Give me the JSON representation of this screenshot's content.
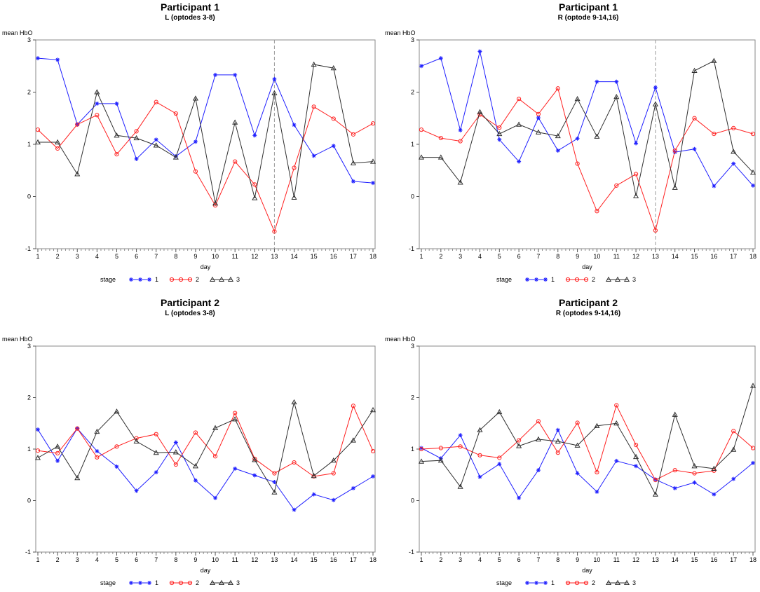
{
  "chart_data": [
    {
      "type": "line",
      "title": "Participant 1",
      "subtitle": "L (optodes 3-8)",
      "xlabel": "day",
      "ylabel": "mean HbO",
      "x": [
        1,
        2,
        3,
        4,
        5,
        6,
        7,
        8,
        9,
        10,
        11,
        12,
        13,
        14,
        15,
        16,
        17,
        18
      ],
      "xticks": [
        "1",
        "2",
        "3",
        "4",
        "5",
        "6",
        "7",
        "8",
        "9",
        "10",
        "11",
        "12",
        "13",
        "14",
        "15",
        "16",
        "17",
        "18"
      ],
      "ylim": [
        -1,
        3
      ],
      "yticks": [
        "-1",
        "0",
        "1",
        "2",
        "3"
      ],
      "vline": 13,
      "legend_title": "stage",
      "series": [
        {
          "name": "1",
          "color": "#1f1fff",
          "marker": "star",
          "values": [
            2.65,
            2.62,
            1.38,
            1.78,
            1.78,
            0.72,
            1.09,
            0.77,
            1.05,
            2.33,
            2.33,
            1.17,
            2.25,
            1.37,
            0.78,
            0.97,
            0.29,
            0.26
          ]
        },
        {
          "name": "2",
          "color": "#ff2020",
          "marker": "circle",
          "values": [
            1.28,
            0.92,
            1.38,
            1.56,
            0.81,
            1.25,
            1.81,
            1.59,
            0.48,
            -0.17,
            0.67,
            0.23,
            -0.67,
            0.55,
            1.72,
            1.49,
            1.19,
            1.4
          ]
        },
        {
          "name": "3",
          "color": "#303030",
          "marker": "triangle",
          "values": [
            1.04,
            1.04,
            0.43,
            2.0,
            1.17,
            1.12,
            0.98,
            0.75,
            1.88,
            -0.13,
            1.42,
            -0.03,
            1.98,
            -0.02,
            2.53,
            2.46,
            0.64,
            0.67
          ]
        }
      ]
    },
    {
      "type": "line",
      "title": "Participant 1",
      "subtitle": "R (optode 9-14,16)",
      "xlabel": "day",
      "ylabel": "mean HbO",
      "x": [
        1,
        2,
        3,
        4,
        5,
        6,
        7,
        8,
        9,
        10,
        11,
        12,
        13,
        14,
        15,
        16,
        17,
        18
      ],
      "xticks": [
        "1",
        "2",
        "3",
        "4",
        "5",
        "6",
        "7",
        "8",
        "9",
        "10",
        "11",
        "12",
        "13",
        "14",
        "15",
        "16",
        "17",
        "18"
      ],
      "ylim": [
        -1,
        3
      ],
      "yticks": [
        "-1",
        "0",
        "1",
        "2",
        "3"
      ],
      "vline": 13,
      "legend_title": "stage",
      "series": [
        {
          "name": "1",
          "color": "#1f1fff",
          "marker": "star",
          "values": [
            2.5,
            2.65,
            1.27,
            2.78,
            1.09,
            0.67,
            1.51,
            0.88,
            1.11,
            2.2,
            2.2,
            1.02,
            2.09,
            0.85,
            0.91,
            0.2,
            0.63,
            0.21
          ]
        },
        {
          "name": "2",
          "color": "#ff2020",
          "marker": "circle",
          "values": [
            1.28,
            1.12,
            1.06,
            1.57,
            1.32,
            1.87,
            1.58,
            2.07,
            0.63,
            -0.28,
            0.21,
            0.43,
            -0.65,
            0.88,
            1.5,
            1.2,
            1.31,
            1.2
          ]
        },
        {
          "name": "3",
          "color": "#303030",
          "marker": "triangle",
          "values": [
            0.75,
            0.75,
            0.27,
            1.62,
            1.2,
            1.38,
            1.23,
            1.16,
            1.87,
            1.15,
            1.91,
            0.01,
            1.77,
            0.17,
            2.41,
            2.6,
            0.86,
            0.46
          ]
        }
      ]
    },
    {
      "type": "line",
      "title": "Participant 2",
      "subtitle": "L (optodes 3-8)",
      "xlabel": "day",
      "ylabel": "mean HbO",
      "x": [
        1,
        2,
        3,
        4,
        5,
        6,
        7,
        8,
        9,
        10,
        11,
        12,
        13,
        14,
        15,
        16,
        17,
        18
      ],
      "xticks": [
        "1",
        "2",
        "3",
        "4",
        "5",
        "6",
        "7",
        "8",
        "9",
        "10",
        "11",
        "12",
        "13",
        "14",
        "15",
        "16",
        "17",
        "18"
      ],
      "ylim": [
        -1,
        3
      ],
      "yticks": [
        "-1",
        "0",
        "1",
        "2",
        "3"
      ],
      "vline": null,
      "legend_title": "stage",
      "series": [
        {
          "name": "1",
          "color": "#1f1fff",
          "marker": "star",
          "values": [
            1.38,
            0.77,
            1.4,
            0.96,
            0.66,
            0.19,
            0.55,
            1.13,
            0.39,
            0.05,
            0.62,
            0.49,
            0.36,
            -0.18,
            0.12,
            0.01,
            0.24,
            0.47
          ]
        },
        {
          "name": "2",
          "color": "#ff2020",
          "marker": "circle",
          "values": [
            0.97,
            0.92,
            1.4,
            0.84,
            1.05,
            1.21,
            1.29,
            0.7,
            1.32,
            0.86,
            1.7,
            0.81,
            0.53,
            0.74,
            0.47,
            0.53,
            1.84,
            0.96
          ]
        },
        {
          "name": "3",
          "color": "#303030",
          "marker": "triangle",
          "values": [
            0.83,
            1.05,
            0.44,
            1.34,
            1.73,
            1.15,
            0.93,
            0.94,
            0.67,
            1.41,
            1.58,
            0.79,
            0.16,
            1.91,
            0.48,
            0.78,
            1.17,
            1.76
          ]
        }
      ]
    },
    {
      "type": "line",
      "title": "Participant 2",
      "subtitle": "R (optodes 9-14,16)",
      "xlabel": "day",
      "ylabel": "mean HbO",
      "x": [
        1,
        2,
        3,
        4,
        5,
        6,
        7,
        8,
        9,
        10,
        11,
        12,
        13,
        14,
        15,
        16,
        17,
        18
      ],
      "xticks": [
        "1",
        "2",
        "3",
        "4",
        "5",
        "6",
        "7",
        "8",
        "9",
        "10",
        "11",
        "12",
        "13",
        "14",
        "15",
        "16",
        "17",
        "18"
      ],
      "ylim": [
        -1,
        3
      ],
      "yticks": [
        "-1",
        "0",
        "1",
        "2",
        "3"
      ],
      "vline": null,
      "legend_title": "stage",
      "series": [
        {
          "name": "1",
          "color": "#1f1fff",
          "marker": "star",
          "values": [
            1.02,
            0.82,
            1.27,
            0.46,
            0.71,
            0.05,
            0.59,
            1.37,
            0.53,
            0.17,
            0.77,
            0.67,
            0.41,
            0.24,
            0.35,
            0.12,
            0.42,
            0.73
          ]
        },
        {
          "name": "2",
          "color": "#ff2020",
          "marker": "circle",
          "values": [
            1.0,
            1.02,
            1.05,
            0.88,
            0.83,
            1.17,
            1.54,
            0.93,
            1.51,
            0.55,
            1.85,
            1.08,
            0.4,
            0.59,
            0.53,
            0.58,
            1.35,
            1.02
          ]
        },
        {
          "name": "3",
          "color": "#303030",
          "marker": "triangle",
          "values": [
            0.76,
            0.78,
            0.27,
            1.37,
            1.72,
            1.06,
            1.19,
            1.15,
            1.07,
            1.45,
            1.5,
            0.85,
            0.12,
            1.67,
            0.67,
            0.62,
            0.99,
            2.23
          ]
        }
      ]
    }
  ]
}
